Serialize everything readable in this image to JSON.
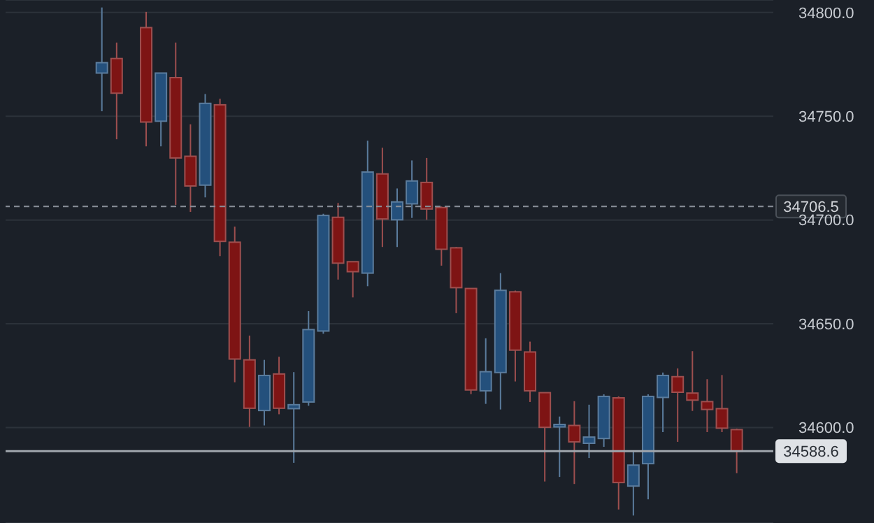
{
  "chart_data": {
    "type": "candlestick",
    "categories": [
      null,
      null,
      null,
      null,
      null,
      null,
      null,
      null,
      null,
      null,
      null,
      null,
      null,
      null,
      null,
      null,
      null,
      null,
      null,
      null,
      null,
      null,
      null,
      null,
      null,
      null,
      null,
      null,
      null,
      null,
      null,
      null,
      null,
      null,
      null,
      null,
      null,
      null,
      null,
      null,
      null,
      null,
      null,
      null,
      null,
      null,
      null,
      null,
      null,
      null,
      null,
      null
    ],
    "ohlc": [
      null,
      null,
      null,
      null,
      null,
      null,
      [
        34770.8,
        34802.4,
        34752.4,
        34775.8
      ],
      [
        34777.8,
        34785.5,
        34738.9,
        34761.1
      ],
      null,
      [
        34792.7,
        34800.3,
        34735.5,
        34747.2
      ],
      [
        34747.6,
        34770.8,
        34735.5,
        34770.8
      ],
      [
        34768.6,
        34785.5,
        34707.3,
        34729.9
      ],
      [
        34730.7,
        34746.1,
        34703.9,
        34716.4
      ],
      [
        34716.8,
        34760.7,
        34710.9,
        34756.2
      ],
      [
        34755.5,
        34758.4,
        34682.6,
        34689.7
      ],
      [
        34689.3,
        34696.8,
        34621.8,
        34633
      ],
      [
        34632.6,
        34644.3,
        34600.3,
        34609.3
      ],
      [
        34608.2,
        34632.6,
        34601,
        34625.1
      ],
      [
        34625.8,
        34634.1,
        34606.4,
        34609.3
      ],
      [
        34609.1,
        34626.7,
        34583,
        34611
      ],
      [
        34612.3,
        34656.1,
        34610.5,
        34647.2
      ],
      [
        34646.5,
        34703,
        34645.2,
        34702.2
      ],
      [
        34701.3,
        34708.2,
        34671.3,
        34679.2
      ],
      [
        34679.9,
        34679.9,
        34662.7,
        34675.1
      ],
      [
        34674.4,
        34738.2,
        34668.1,
        34723.1
      ],
      [
        34722.2,
        34734.8,
        34687,
        34700.5
      ],
      [
        34700.1,
        34715.2,
        34687,
        34708.7
      ],
      [
        34707.8,
        34728.7,
        34701,
        34718.8
      ],
      [
        34718.1,
        34729.9,
        34700.1,
        34705.3
      ],
      [
        34706,
        34706.5,
        34678,
        34685.9
      ],
      [
        34686.6,
        34687,
        34655.1,
        34667.4
      ],
      [
        34667,
        34667,
        34616.1,
        34618.1
      ],
      [
        34617.7,
        34643,
        34611.4,
        34626.9
      ],
      [
        34626.5,
        34674.4,
        34608.7,
        34666.1
      ],
      [
        34665.4,
        34666,
        34622.2,
        34637.3
      ],
      [
        34636.4,
        34641.4,
        34612.3,
        34617.7
      ],
      [
        34616.8,
        34617,
        34574,
        34600.1
      ],
      [
        34600.3,
        34605.3,
        34576.2,
        34601.5
      ],
      [
        34601,
        34612.7,
        34572.8,
        34593.1
      ],
      [
        34592.4,
        34611,
        34585.3,
        34595.4
      ],
      [
        34594.7,
        34616,
        34590.7,
        34615
      ],
      [
        34614.3,
        34615,
        34560.5,
        34573.5
      ],
      [
        34571.8,
        34588.6,
        34557.6,
        34581.9
      ],
      [
        34582.6,
        34616,
        34565.4,
        34615
      ],
      [
        34614.5,
        34626.5,
        34597.8,
        34625.1
      ],
      [
        34624.5,
        34628.5,
        34593.1,
        34617
      ],
      [
        34616.6,
        34636.8,
        34608,
        34613.2
      ],
      [
        34612.5,
        34623.3,
        34597.8,
        34608.7
      ],
      [
        34609.1,
        34625.3,
        34597.8,
        34599.7
      ],
      [
        34599,
        34599.5,
        34578,
        34588.6
      ],
      null,
      null
    ],
    "colors": [
      null,
      null,
      null,
      null,
      null,
      "#7e1414",
      "#24507c",
      "#7e1414",
      "#24507c",
      "#7e1414",
      "#24507c",
      "#7e1414",
      "#7e1414",
      "#24507c",
      "#7e1414",
      "#7e1414",
      "#7e1414",
      "#24507c",
      "#7e1414",
      "#24507c",
      "#24507c",
      "#24507c",
      "#7e1414",
      "#7e1414",
      "#24507c",
      "#7e1414",
      "#24507c",
      "#24507c",
      "#7e1414",
      "#7e1414",
      "#7e1414",
      "#7e1414",
      "#24507c",
      "#24507c",
      "#7e1414",
      "#7e1414",
      "#7e1414",
      "#24507c",
      "#7e1414",
      "#24507c",
      "#24507c",
      "#7e1414",
      "#24507c",
      "#24507c",
      "#24507c",
      "#7e1414",
      "#7e1414",
      "#7e1414",
      "#7e1414",
      "#7e1414",
      null,
      null
    ],
    "ylim": [
      34554,
      34806
    ],
    "yticks": [
      {
        "value": 34600,
        "label": "34600.0"
      },
      {
        "value": 34650,
        "label": "34650.0"
      },
      {
        "value": 34700,
        "label": "34700.0"
      },
      {
        "value": 34750,
        "label": "34750.0"
      },
      {
        "value": 34800,
        "label": "34800.0"
      }
    ],
    "grid": "y",
    "ref_lines": [
      {
        "axis": "y",
        "value": 34706.5,
        "label": "34706.5",
        "line_style": "dashed",
        "color": "#8a9099"
      },
      {
        "axis": "y",
        "value": 34588.6,
        "label": "34588.6",
        "line_style": "solid",
        "color": "#a0a6ad"
      }
    ]
  }
}
